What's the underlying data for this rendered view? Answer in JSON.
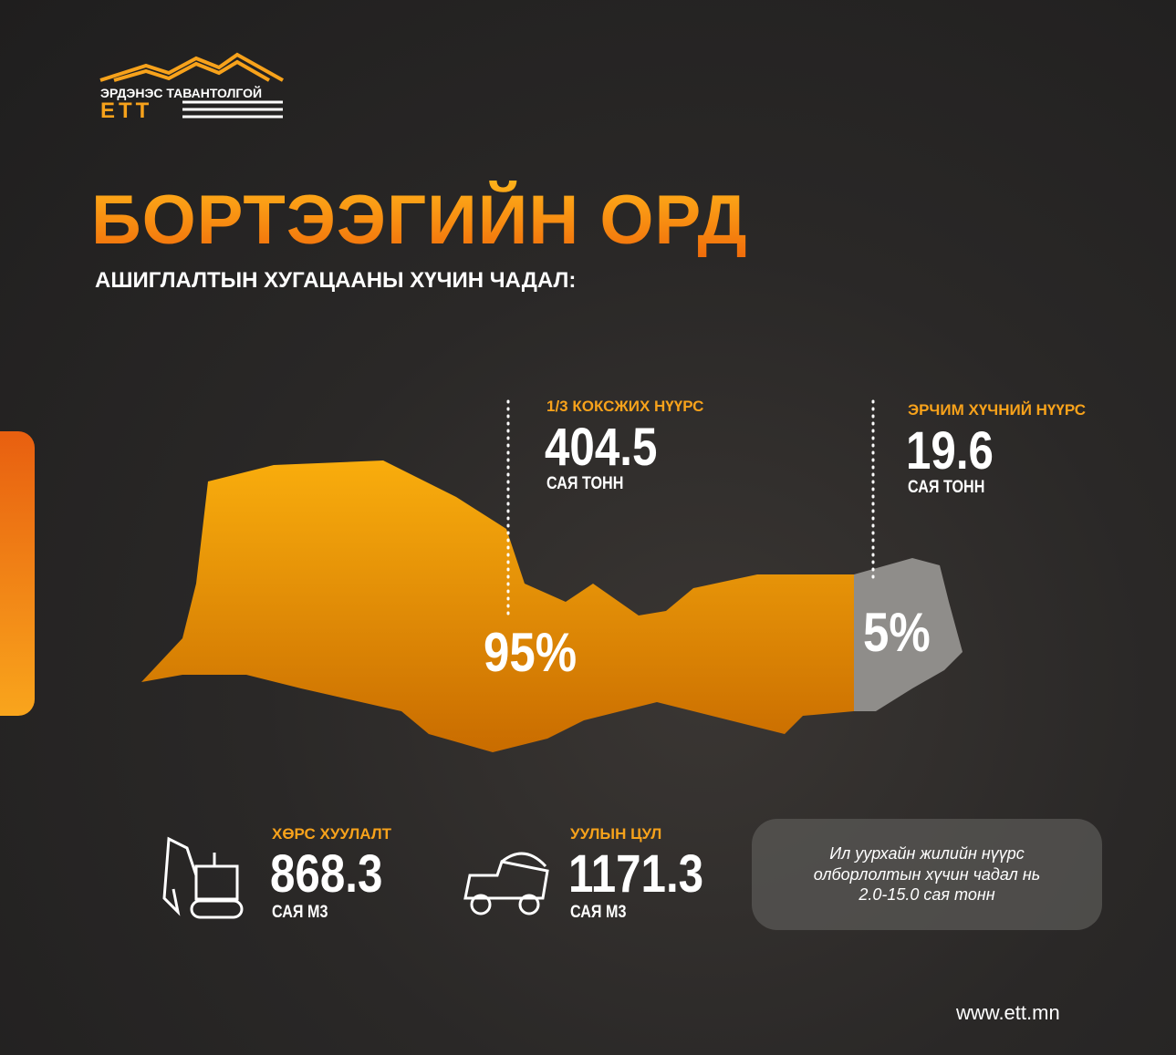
{
  "logo": {
    "name": "ЭРДЭНЭС ТАВАНТОЛГОЙ",
    "abbr": "ЕТТ"
  },
  "header": {
    "title": "БОРТЭЭГИЙН ОРД",
    "subtitle": "АШИГЛАЛТЫН ХУГАЦААНЫ ХҮЧИН ЧАДАЛ:"
  },
  "reserves": [
    {
      "label": "1/3 КОКСЖИХ НҮҮРС",
      "value": 404.5,
      "unit": "САЯ ТОНН",
      "share": "95%"
    },
    {
      "label": "ЭРЧИМ ХҮЧНИЙ НҮҮРС",
      "value": 19.6,
      "unit": "САЯ ТОНН",
      "share": "5%"
    }
  ],
  "stats": [
    {
      "label": "ХӨРС ХУУЛАЛТ",
      "value": 868.3,
      "unit": "САЯ М3"
    },
    {
      "label": "УУЛЫН ЦУЛ",
      "value": 1171.3,
      "unit": "САЯ М3"
    }
  ],
  "note": {
    "lines": [
      "Ил уурхайн жилийн нүүрс",
      "олборлолтын хүчин чадал нь",
      "2.0-15.0 сая тонн"
    ]
  },
  "footer": {
    "url": "www.ett.mn"
  }
}
